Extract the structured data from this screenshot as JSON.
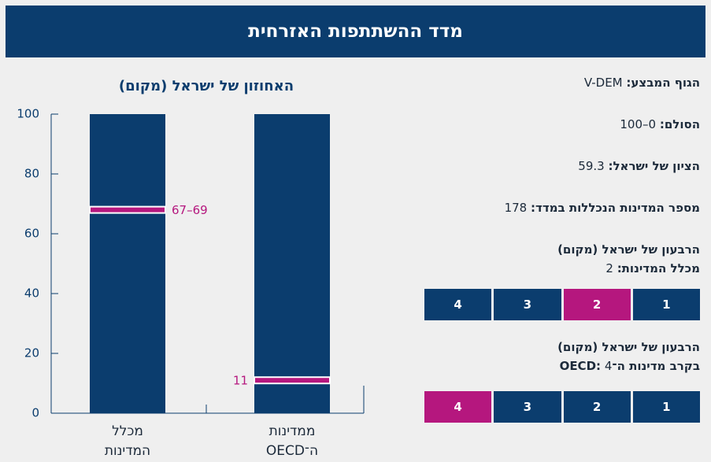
{
  "header": {
    "title": "מדד ההשתתפות האזרחית"
  },
  "facts": [
    {
      "label": "הגוף המבצע:",
      "value": "V-DEM"
    },
    {
      "label": "הסולם:",
      "value": "0–100"
    },
    {
      "label": "הציון של ישראל:",
      "value": 59.3
    },
    {
      "label": "מספר המדינות הנכללות במדד:",
      "value": 178
    }
  ],
  "quartiles": [
    {
      "title": "הרבעון של ישראל (מקום)",
      "label": "מכלל המדינות:",
      "value": 2,
      "boxes": [
        1,
        2,
        3,
        4
      ]
    },
    {
      "title": "הרבעון של ישראל (מקום)",
      "label": "בקרב מדינות ה־OECD:",
      "value": 4,
      "boxes": [
        1,
        2,
        3,
        4
      ]
    }
  ],
  "chart_data": {
    "type": "percentile-band",
    "title": "האחוזון של ישראל (מקום)",
    "categories": [
      [
        "מכלל",
        "המדינות"
      ],
      [
        "ממדינות",
        "ה־OECD"
      ]
    ],
    "ranges": [
      [
        67,
        69
      ],
      [
        11,
        11
      ]
    ],
    "value_labels": [
      "67–69",
      "11"
    ],
    "ylim": [
      0,
      100
    ],
    "yticks": [
      0,
      20,
      40,
      60,
      80,
      100
    ],
    "color": "#0b3d6e",
    "highlight_color": "#b5177e"
  }
}
